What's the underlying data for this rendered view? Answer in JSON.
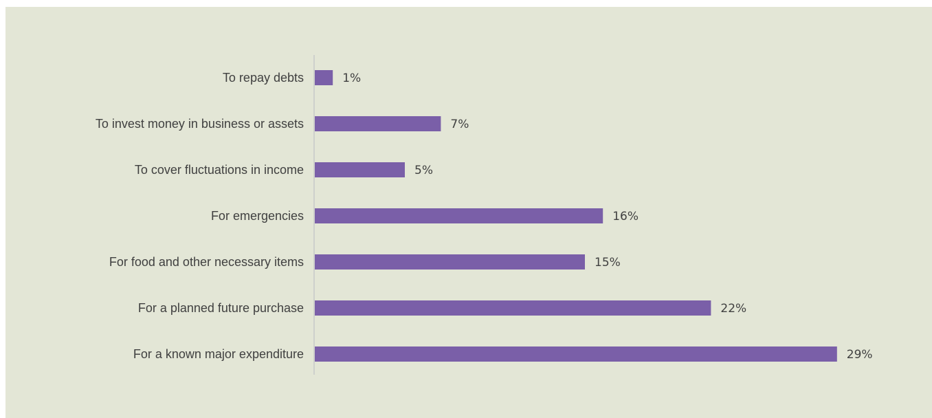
{
  "chart_data": {
    "type": "bar",
    "orientation": "horizontal",
    "categories": [
      "To repay debts",
      "To invest money in business or assets",
      "To cover fluctuations in income",
      "For emergencies",
      "For food and other necessary items",
      "For a planned future purchase",
      "For a known major expenditure"
    ],
    "values": [
      1,
      7,
      5,
      16,
      15,
      22,
      29
    ],
    "value_labels": [
      "1%",
      "7%",
      "5%",
      "16%",
      "15%",
      "22%",
      "29%"
    ],
    "unit": "%",
    "xlim": [
      0,
      30
    ],
    "grid": false,
    "legend": "none"
  },
  "colors": {
    "bar": "#7a5fa8",
    "background": "#e3e6d6",
    "axis": "#c8c8c8",
    "text": "#404040"
  }
}
